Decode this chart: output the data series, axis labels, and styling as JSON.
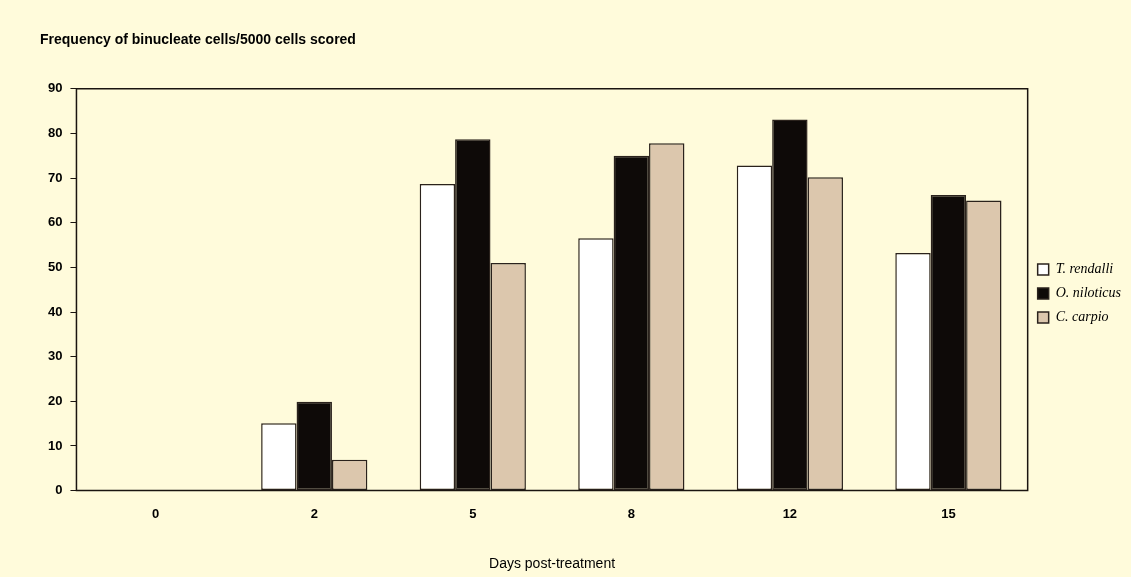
{
  "chart_data": {
    "type": "bar",
    "title": "Frequency of binucleate cells/5000 cells scored",
    "xlabel": "Days post-treatment",
    "categories": [
      "0",
      "2",
      "5",
      "8",
      "12",
      "15"
    ],
    "series": [
      {
        "name": "T. rendalli",
        "color": "#ffffff",
        "values": [
          0,
          15.1,
          68.7,
          56.5,
          72.8,
          53.2
        ]
      },
      {
        "name": "O. niloticus",
        "color": "#0e0a08",
        "values": [
          0,
          19.9,
          78.7,
          75.0,
          83.1,
          66.2
        ]
      },
      {
        "name": "C. carpio",
        "color": "#dcc7ad",
        "values": [
          0,
          6.9,
          51.0,
          77.8,
          70.2,
          65.0
        ]
      }
    ],
    "ylim": [
      0,
      90
    ],
    "yticks": [
      0,
      10,
      20,
      30,
      40,
      50,
      60,
      70,
      80,
      90
    ],
    "grid": false,
    "legend": "right"
  }
}
